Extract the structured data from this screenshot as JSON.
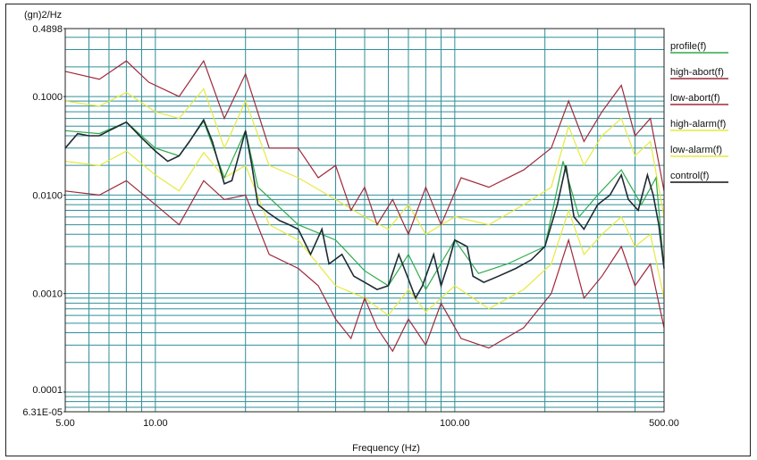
{
  "chart_data": {
    "type": "line",
    "title": "",
    "xlabel": "Frequency (Hz)",
    "ylabel": "(gn)2/Hz",
    "x_scale": "log",
    "y_scale": "log",
    "xlim": [
      5,
      500
    ],
    "ylim": [
      6.31e-05,
      0.4898
    ],
    "x_tick_labels": [
      "5.00",
      "10.00",
      "100.00",
      "500.00"
    ],
    "x_tick_values": [
      5,
      10,
      100,
      500
    ],
    "y_tick_labels": [
      "0.4898",
      "0.1000",
      "0.0100",
      "0.0010",
      "0.0001",
      "6.31E-05"
    ],
    "y_tick_values": [
      0.4898,
      0.1,
      0.01,
      0.001,
      0.0001,
      6.31e-05
    ],
    "grid": true,
    "legend_position": "right",
    "series": [
      {
        "name": "profile(f)",
        "color": "#2faa4a",
        "points": [
          [
            5,
            0.045
          ],
          [
            6.5,
            0.042
          ],
          [
            8,
            0.055
          ],
          [
            10,
            0.03
          ],
          [
            12,
            0.025
          ],
          [
            14.5,
            0.056
          ],
          [
            17,
            0.015
          ],
          [
            20,
            0.045
          ],
          [
            22,
            0.012
          ],
          [
            30,
            0.005
          ],
          [
            40,
            0.0035
          ],
          [
            50,
            0.0017
          ],
          [
            60,
            0.0012
          ],
          [
            70,
            0.0025
          ],
          [
            80,
            0.0011
          ],
          [
            100,
            0.0035
          ],
          [
            120,
            0.0016
          ],
          [
            150,
            0.002
          ],
          [
            200,
            0.003
          ],
          [
            230,
            0.022
          ],
          [
            260,
            0.006
          ],
          [
            300,
            0.01
          ],
          [
            360,
            0.018
          ],
          [
            420,
            0.008
          ],
          [
            470,
            0.015
          ],
          [
            500,
            0.0018
          ]
        ]
      },
      {
        "name": "high-abort(f)",
        "color": "#a0283a",
        "points": [
          [
            5,
            0.18
          ],
          [
            6.5,
            0.15
          ],
          [
            8,
            0.23
          ],
          [
            9.5,
            0.14
          ],
          [
            12,
            0.1
          ],
          [
            14.5,
            0.23
          ],
          [
            17,
            0.06
          ],
          [
            20,
            0.17
          ],
          [
            24,
            0.03
          ],
          [
            30,
            0.03
          ],
          [
            35,
            0.015
          ],
          [
            40,
            0.02
          ],
          [
            45,
            0.007
          ],
          [
            50,
            0.012
          ],
          [
            55,
            0.005
          ],
          [
            62,
            0.009
          ],
          [
            70,
            0.004
          ],
          [
            80,
            0.012
          ],
          [
            90,
            0.005
          ],
          [
            105,
            0.015
          ],
          [
            130,
            0.012
          ],
          [
            170,
            0.018
          ],
          [
            210,
            0.03
          ],
          [
            240,
            0.09
          ],
          [
            270,
            0.035
          ],
          [
            310,
            0.07
          ],
          [
            360,
            0.13
          ],
          [
            400,
            0.04
          ],
          [
            450,
            0.06
          ],
          [
            500,
            0.011
          ]
        ]
      },
      {
        "name": "low-abort(f)",
        "color": "#a0283a",
        "points": [
          [
            5,
            0.011
          ],
          [
            6.5,
            0.01
          ],
          [
            8,
            0.014
          ],
          [
            10,
            0.008
          ],
          [
            12,
            0.005
          ],
          [
            14.5,
            0.014
          ],
          [
            17,
            0.009
          ],
          [
            20,
            0.01
          ],
          [
            24,
            0.0025
          ],
          [
            30,
            0.0018
          ],
          [
            35,
            0.0012
          ],
          [
            40,
            0.00055
          ],
          [
            45,
            0.00035
          ],
          [
            50,
            0.0009
          ],
          [
            55,
            0.00045
          ],
          [
            62,
            0.00026
          ],
          [
            70,
            0.00055
          ],
          [
            80,
            0.0003
          ],
          [
            90,
            0.0008
          ],
          [
            105,
            0.00035
          ],
          [
            130,
            0.00028
          ],
          [
            170,
            0.00045
          ],
          [
            210,
            0.001
          ],
          [
            240,
            0.0035
          ],
          [
            270,
            0.0009
          ],
          [
            310,
            0.0015
          ],
          [
            360,
            0.003
          ],
          [
            400,
            0.0012
          ],
          [
            450,
            0.002
          ],
          [
            500,
            0.00045
          ]
        ]
      },
      {
        "name": "high-alarm(f)",
        "color": "#e8e840",
        "points": [
          [
            5,
            0.09
          ],
          [
            6.5,
            0.08
          ],
          [
            8,
            0.11
          ],
          [
            10,
            0.07
          ],
          [
            12,
            0.06
          ],
          [
            14.5,
            0.12
          ],
          [
            17,
            0.03
          ],
          [
            20,
            0.09
          ],
          [
            24,
            0.02
          ],
          [
            30,
            0.015
          ],
          [
            40,
            0.009
          ],
          [
            50,
            0.006
          ],
          [
            60,
            0.0045
          ],
          [
            70,
            0.008
          ],
          [
            80,
            0.004
          ],
          [
            100,
            0.006
          ],
          [
            130,
            0.005
          ],
          [
            170,
            0.008
          ],
          [
            210,
            0.012
          ],
          [
            240,
            0.05
          ],
          [
            270,
            0.02
          ],
          [
            310,
            0.04
          ],
          [
            360,
            0.06
          ],
          [
            400,
            0.025
          ],
          [
            450,
            0.035
          ],
          [
            500,
            0.006
          ]
        ]
      },
      {
        "name": "low-alarm(f)",
        "color": "#e8e840",
        "points": [
          [
            5,
            0.022
          ],
          [
            6.5,
            0.02
          ],
          [
            8,
            0.028
          ],
          [
            10,
            0.016
          ],
          [
            12,
            0.011
          ],
          [
            14.5,
            0.027
          ],
          [
            17,
            0.015
          ],
          [
            20,
            0.02
          ],
          [
            24,
            0.005
          ],
          [
            30,
            0.0035
          ],
          [
            40,
            0.0012
          ],
          [
            50,
            0.0009
          ],
          [
            60,
            0.0006
          ],
          [
            70,
            0.0011
          ],
          [
            80,
            0.00065
          ],
          [
            100,
            0.0012
          ],
          [
            130,
            0.0007
          ],
          [
            170,
            0.0011
          ],
          [
            210,
            0.002
          ],
          [
            240,
            0.007
          ],
          [
            270,
            0.0025
          ],
          [
            310,
            0.004
          ],
          [
            360,
            0.006
          ],
          [
            400,
            0.003
          ],
          [
            450,
            0.004
          ],
          [
            500,
            0.0009
          ]
        ]
      },
      {
        "name": "control(f)",
        "color": "#1e2a32",
        "points": [
          [
            5,
            0.03
          ],
          [
            5.5,
            0.042
          ],
          [
            6,
            0.04
          ],
          [
            6.5,
            0.04
          ],
          [
            7,
            0.045
          ],
          [
            8,
            0.055
          ],
          [
            9,
            0.038
          ],
          [
            10,
            0.028
          ],
          [
            11,
            0.022
          ],
          [
            12,
            0.025
          ],
          [
            13,
            0.035
          ],
          [
            14.5,
            0.058
          ],
          [
            15.5,
            0.035
          ],
          [
            17,
            0.013
          ],
          [
            18,
            0.014
          ],
          [
            20,
            0.045
          ],
          [
            21,
            0.02
          ],
          [
            22,
            0.008
          ],
          [
            24,
            0.0065
          ],
          [
            26,
            0.0055
          ],
          [
            28,
            0.005
          ],
          [
            30,
            0.0045
          ],
          [
            33,
            0.0025
          ],
          [
            36,
            0.0045
          ],
          [
            38,
            0.002
          ],
          [
            42,
            0.0025
          ],
          [
            46,
            0.0015
          ],
          [
            50,
            0.0013
          ],
          [
            55,
            0.0011
          ],
          [
            60,
            0.0012
          ],
          [
            65,
            0.0025
          ],
          [
            70,
            0.0014
          ],
          [
            74,
            0.0009
          ],
          [
            78,
            0.0012
          ],
          [
            85,
            0.0025
          ],
          [
            90,
            0.0012
          ],
          [
            95,
            0.002
          ],
          [
            100,
            0.0035
          ],
          [
            110,
            0.003
          ],
          [
            115,
            0.0015
          ],
          [
            125,
            0.0013
          ],
          [
            140,
            0.0015
          ],
          [
            160,
            0.0018
          ],
          [
            180,
            0.0022
          ],
          [
            200,
            0.003
          ],
          [
            220,
            0.008
          ],
          [
            235,
            0.02
          ],
          [
            250,
            0.006
          ],
          [
            270,
            0.0045
          ],
          [
            300,
            0.008
          ],
          [
            330,
            0.01
          ],
          [
            360,
            0.016
          ],
          [
            380,
            0.009
          ],
          [
            410,
            0.007
          ],
          [
            440,
            0.016
          ],
          [
            460,
            0.01
          ],
          [
            480,
            0.005
          ],
          [
            500,
            0.0018
          ]
        ]
      }
    ]
  }
}
